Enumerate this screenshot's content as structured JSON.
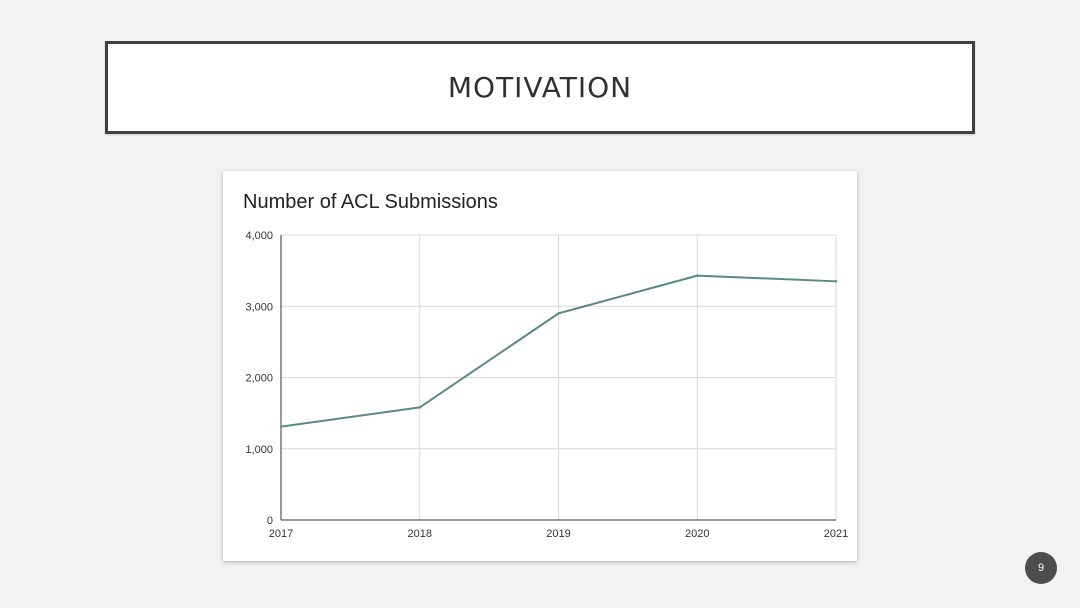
{
  "slide": {
    "title": "MOTIVATION",
    "page_number": "9"
  },
  "colors": {
    "line": "#5b8a86",
    "grid": "#d9d9d9",
    "axis": "#333333",
    "frame": "#404040"
  },
  "chart_data": {
    "type": "line",
    "title": "Number of ACL Submissions",
    "xlabel": "",
    "ylabel": "",
    "x": [
      "2017",
      "2018",
      "2019",
      "2020",
      "2021"
    ],
    "series": [
      {
        "values": [
          1310,
          1580,
          2900,
          3430,
          3350
        ]
      }
    ],
    "ylim": [
      0,
      4000
    ],
    "yticks": [
      0,
      1000,
      2000,
      3000,
      4000
    ],
    "ytick_labels": [
      "0",
      "1,000",
      "2,000",
      "3,000",
      "4,000"
    ],
    "grid": true,
    "legend": "none"
  }
}
